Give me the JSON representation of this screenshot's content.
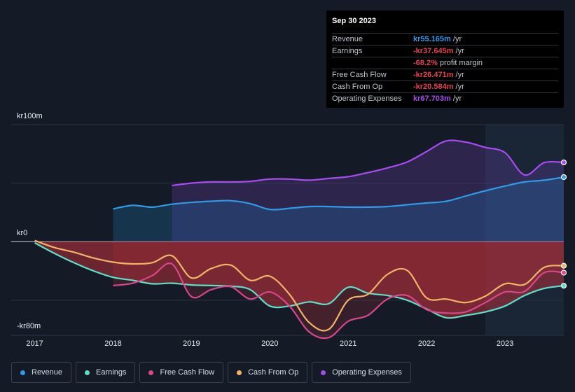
{
  "tooltip": {
    "date": "Sep 30 2023",
    "rows": [
      {
        "label": "Revenue",
        "value": "kr55.165m",
        "unit": " /yr",
        "color": "#2f9be6"
      },
      {
        "label": "Earnings",
        "value": "-kr37.645m",
        "unit": " /yr",
        "color": "#e8414e"
      },
      {
        "label": "",
        "value": "-68.2%",
        "unit": " profit margin",
        "color": "#e8414e"
      },
      {
        "label": "Free Cash Flow",
        "value": "-kr26.471m",
        "unit": " /yr",
        "color": "#e8414e"
      },
      {
        "label": "Cash From Op",
        "value": "-kr20.584m",
        "unit": " /yr",
        "color": "#e8414e"
      },
      {
        "label": "Operating Expenses",
        "value": "kr67.703m",
        "unit": " /yr",
        "color": "#a64cf0"
      }
    ]
  },
  "legend": [
    {
      "label": "Revenue",
      "color": "#2f9be6"
    },
    {
      "label": "Earnings",
      "color": "#5ce0c8"
    },
    {
      "label": "Free Cash Flow",
      "color": "#d9468a"
    },
    {
      "label": "Cash From Op",
      "color": "#f2b366"
    },
    {
      "label": "Operating Expenses",
      "color": "#a64cf0"
    }
  ],
  "chart_data": {
    "type": "line",
    "y_unit": "kr m",
    "ylim": [
      -80,
      100
    ],
    "y_tick_labels": {
      "top": "kr100m",
      "zero": "kr0",
      "bottom": "-kr80m"
    },
    "x_tick_labels": [
      "2017",
      "2018",
      "2019",
      "2020",
      "2021",
      "2022",
      "2023"
    ],
    "x_range": [
      2016.7,
      2023.75
    ],
    "forecast_shade_start": 2022.75,
    "series": [
      {
        "name": "Revenue",
        "color": "#2f9be6",
        "points": [
          [
            2018.0,
            28
          ],
          [
            2018.25,
            31
          ],
          [
            2018.5,
            29.5
          ],
          [
            2018.75,
            32
          ],
          [
            2019.0,
            33.5
          ],
          [
            2019.25,
            34.5
          ],
          [
            2019.5,
            35
          ],
          [
            2019.75,
            32.5
          ],
          [
            2020.0,
            27.5
          ],
          [
            2020.25,
            28.5
          ],
          [
            2020.5,
            30
          ],
          [
            2020.75,
            30
          ],
          [
            2021.0,
            29.5
          ],
          [
            2021.25,
            29.5
          ],
          [
            2021.5,
            30
          ],
          [
            2021.75,
            31.5
          ],
          [
            2022.0,
            33
          ],
          [
            2022.25,
            34.5
          ],
          [
            2022.5,
            39
          ],
          [
            2022.75,
            43.5
          ],
          [
            2023.0,
            47.5
          ],
          [
            2023.25,
            51
          ],
          [
            2023.5,
            52.5
          ],
          [
            2023.75,
            55.165
          ]
        ]
      },
      {
        "name": "Earnings",
        "color": "#5ce0c8",
        "points": [
          [
            2017.0,
            -1
          ],
          [
            2017.25,
            -10
          ],
          [
            2017.5,
            -18
          ],
          [
            2017.75,
            -25
          ],
          [
            2018.0,
            -30.5
          ],
          [
            2018.25,
            -33
          ],
          [
            2018.5,
            -36
          ],
          [
            2018.75,
            -35.5
          ],
          [
            2019.0,
            -37
          ],
          [
            2019.25,
            -37.5
          ],
          [
            2019.5,
            -38
          ],
          [
            2019.75,
            -41
          ],
          [
            2020.0,
            -55
          ],
          [
            2020.25,
            -55
          ],
          [
            2020.5,
            -51.5
          ],
          [
            2020.75,
            -53
          ],
          [
            2021.0,
            -39
          ],
          [
            2021.25,
            -44
          ],
          [
            2021.5,
            -46
          ],
          [
            2021.75,
            -50
          ],
          [
            2022.0,
            -57.5
          ],
          [
            2022.25,
            -65
          ],
          [
            2022.5,
            -63
          ],
          [
            2022.75,
            -60
          ],
          [
            2023.0,
            -55
          ],
          [
            2023.25,
            -46
          ],
          [
            2023.5,
            -40
          ],
          [
            2023.75,
            -37.645
          ]
        ]
      },
      {
        "name": "Free Cash Flow",
        "color": "#d9468a",
        "points": [
          [
            2018.0,
            -37.5
          ],
          [
            2018.25,
            -35.5
          ],
          [
            2018.5,
            -29
          ],
          [
            2018.75,
            -19
          ],
          [
            2019.0,
            -47
          ],
          [
            2019.25,
            -41
          ],
          [
            2019.5,
            -38.5
          ],
          [
            2019.75,
            -49
          ],
          [
            2020.0,
            -43
          ],
          [
            2020.25,
            -55
          ],
          [
            2020.5,
            -77
          ],
          [
            2020.75,
            -82
          ],
          [
            2021.0,
            -68
          ],
          [
            2021.25,
            -63
          ],
          [
            2021.5,
            -49
          ],
          [
            2021.75,
            -46
          ],
          [
            2022.0,
            -58
          ],
          [
            2022.25,
            -61
          ],
          [
            2022.5,
            -60
          ],
          [
            2022.75,
            -52
          ],
          [
            2023.0,
            -43
          ],
          [
            2023.25,
            -42.5
          ],
          [
            2023.5,
            -26.5
          ],
          [
            2023.75,
            -26.471
          ]
        ]
      },
      {
        "name": "Cash From Op",
        "color": "#f2b366",
        "points": [
          [
            2017.0,
            1
          ],
          [
            2017.25,
            -5
          ],
          [
            2017.5,
            -9
          ],
          [
            2017.75,
            -14
          ],
          [
            2018.0,
            -17.5
          ],
          [
            2018.25,
            -19
          ],
          [
            2018.5,
            -18
          ],
          [
            2018.75,
            -12
          ],
          [
            2019.0,
            -31
          ],
          [
            2019.25,
            -23
          ],
          [
            2019.5,
            -20
          ],
          [
            2019.75,
            -33
          ],
          [
            2020.0,
            -29.5
          ],
          [
            2020.25,
            -45
          ],
          [
            2020.5,
            -69
          ],
          [
            2020.75,
            -75
          ],
          [
            2021.0,
            -50
          ],
          [
            2021.25,
            -45
          ],
          [
            2021.5,
            -28
          ],
          [
            2021.75,
            -24.5
          ],
          [
            2022.0,
            -48
          ],
          [
            2022.25,
            -49
          ],
          [
            2022.5,
            -52
          ],
          [
            2022.75,
            -46.5
          ],
          [
            2023.0,
            -36
          ],
          [
            2023.25,
            -36.5
          ],
          [
            2023.5,
            -22
          ],
          [
            2023.75,
            -20.584
          ]
        ]
      },
      {
        "name": "Operating Expenses",
        "color": "#a64cf0",
        "points": [
          [
            2018.75,
            48
          ],
          [
            2019.0,
            50
          ],
          [
            2019.25,
            51
          ],
          [
            2019.5,
            51
          ],
          [
            2019.75,
            51.5
          ],
          [
            2020.0,
            53.5
          ],
          [
            2020.25,
            53.5
          ],
          [
            2020.5,
            52.5
          ],
          [
            2020.75,
            54
          ],
          [
            2021.0,
            55.5
          ],
          [
            2021.25,
            59
          ],
          [
            2021.5,
            63
          ],
          [
            2021.75,
            68
          ],
          [
            2022.0,
            77
          ],
          [
            2022.25,
            86
          ],
          [
            2022.5,
            85
          ],
          [
            2022.75,
            80.5
          ],
          [
            2023.0,
            76
          ],
          [
            2023.25,
            57
          ],
          [
            2023.5,
            67.5
          ],
          [
            2023.75,
            67.703
          ]
        ]
      }
    ]
  }
}
